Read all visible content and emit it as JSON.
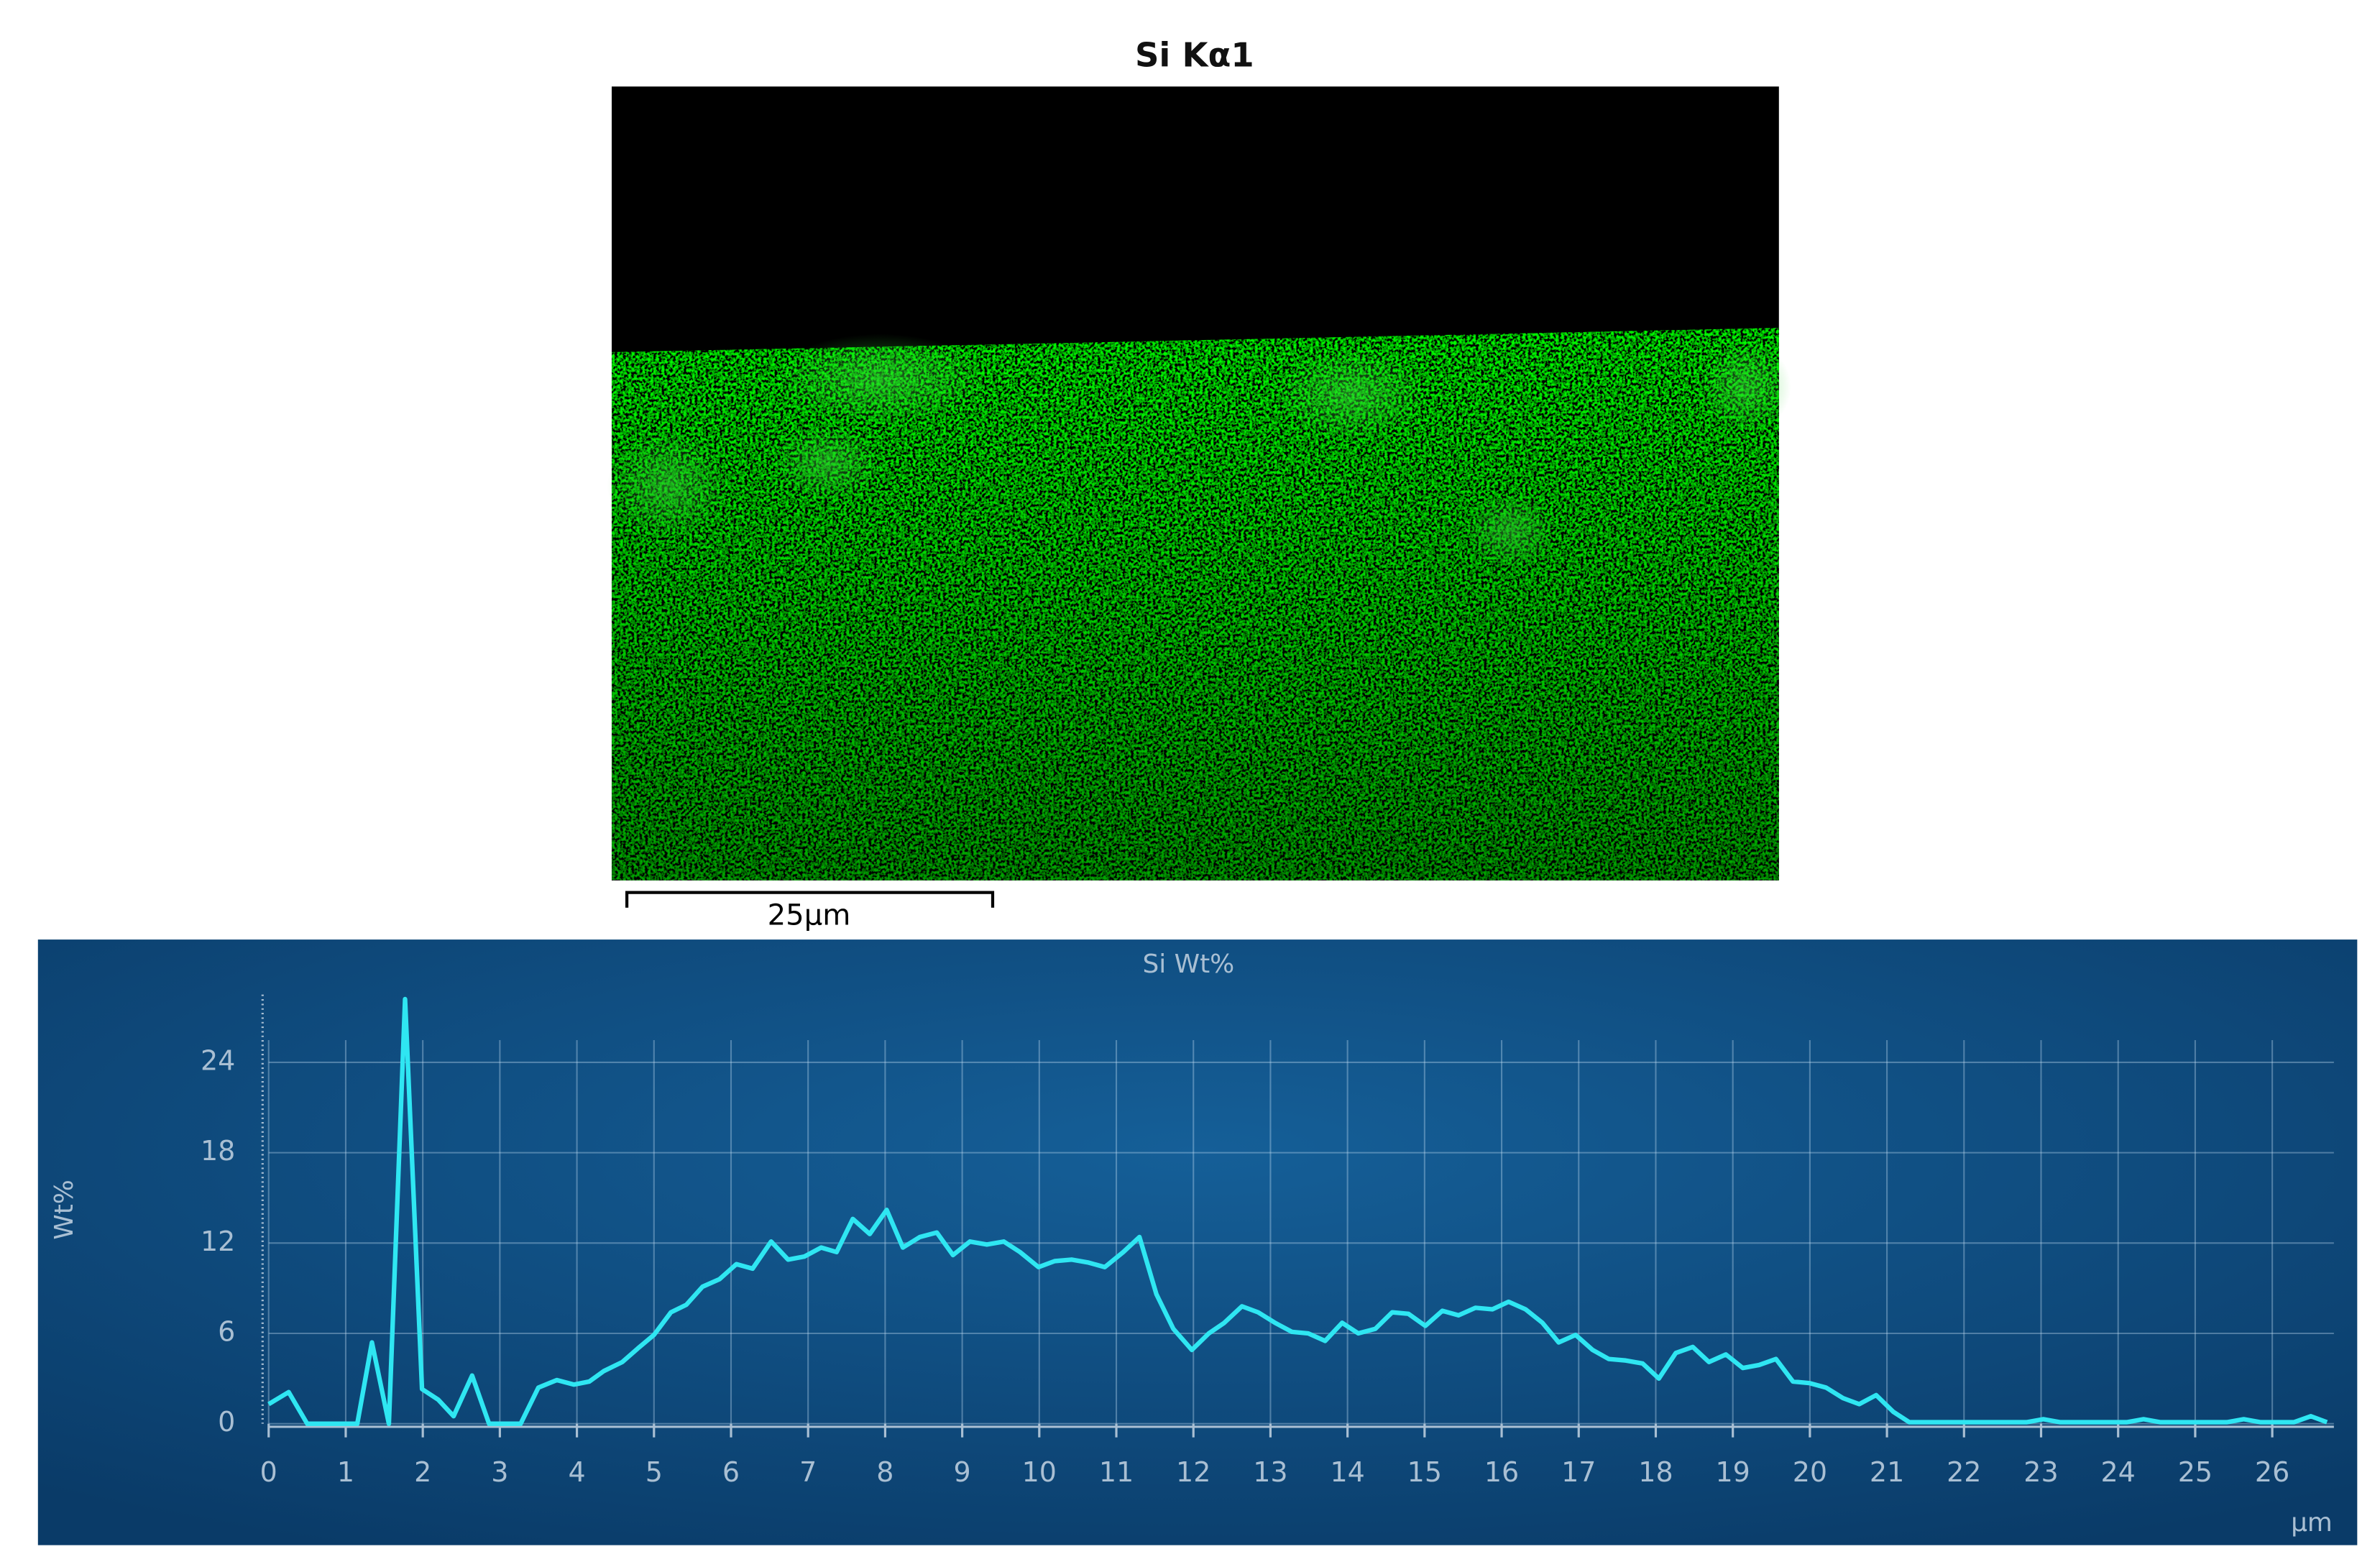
{
  "map": {
    "title": "Si Kα1",
    "scale_bar": "25µm"
  },
  "chart_data": {
    "type": "line",
    "title": "Si Wt%",
    "y_label": "Wt%",
    "x_label": "µm",
    "color": "#2fe6f2",
    "grid": true,
    "xlim": [
      0,
      26.8
    ],
    "ylim": [
      0,
      28.5
    ],
    "xticks": [
      0,
      1,
      2,
      3,
      4,
      5,
      6,
      7,
      8,
      9,
      10,
      11,
      12,
      13,
      14,
      15,
      16,
      17,
      18,
      19,
      20,
      21,
      22,
      23,
      24,
      25,
      26
    ],
    "yticks": [
      0,
      6,
      12,
      18,
      24
    ],
    "x": [
      0,
      0.26,
      0.5,
      1.15,
      1.34,
      1.56,
      1.77,
      1.99,
      2.2,
      2.4,
      2.64,
      2.86,
      3.27,
      3.5,
      3.74,
      3.96,
      4.16,
      4.35,
      4.59,
      4.79,
      5,
      5.22,
      5.42,
      5.63,
      5.85,
      6.07,
      6.28,
      6.52,
      6.74,
      6.95,
      7.17,
      7.37,
      7.58,
      7.8,
      8.02,
      8.23,
      8.45,
      8.67,
      8.88,
      9.1,
      9.32,
      9.54,
      9.75,
      9.99,
      10.2,
      10.42,
      10.64,
      10.85,
      11.09,
      11.3,
      11.52,
      11.74,
      11.98,
      12.2,
      12.4,
      12.63,
      12.84,
      13.06,
      13.28,
      13.49,
      13.71,
      13.93,
      14.14,
      14.36,
      14.58,
      14.79,
      15.01,
      15.23,
      15.44,
      15.66,
      15.88,
      16.09,
      16.31,
      16.53,
      16.74,
      16.96,
      17.18,
      17.39,
      17.61,
      17.83,
      18.04,
      18.26,
      18.48,
      18.69,
      18.91,
      19.13,
      19.34,
      19.56,
      19.78,
      19.99,
      20.21,
      20.43,
      20.64,
      20.86,
      21.08,
      21.29,
      21.51,
      21.73,
      21.95,
      22.16,
      22.38,
      22.6,
      22.81,
      23.03,
      23.25,
      23.46,
      23.68,
      23.9,
      24.11,
      24.33,
      24.55,
      24.76,
      24.98,
      25.2,
      25.41,
      25.63,
      25.85,
      26.06,
      26.28,
      26.5,
      26.71
    ],
    "values": [
      1.3,
      2.1,
      0,
      0,
      5.4,
      0,
      28.2,
      2.3,
      1.6,
      0.5,
      3.2,
      0,
      0,
      2.4,
      2.9,
      2.6,
      2.8,
      3.5,
      4.1,
      5,
      5.9,
      7.4,
      7.9,
      9.1,
      9.6,
      10.6,
      10.3,
      12.1,
      10.9,
      11.1,
      11.7,
      11.4,
      13.6,
      12.6,
      14.2,
      11.7,
      12.4,
      12.7,
      11.2,
      12.1,
      11.9,
      12.1,
      11.4,
      10.4,
      10.8,
      10.9,
      10.7,
      10.4,
      11.4,
      12.4,
      8.6,
      6.3,
      4.9,
      6,
      6.7,
      7.8,
      7.4,
      6.7,
      6.1,
      6,
      5.5,
      6.7,
      6,
      6.3,
      7.4,
      7.3,
      6.5,
      7.5,
      7.2,
      7.7,
      7.6,
      8.1,
      7.6,
      6.7,
      5.4,
      5.9,
      4.9,
      4.3,
      4.2,
      4,
      3,
      4.7,
      5.1,
      4.1,
      4.6,
      3.7,
      3.9,
      4.3,
      2.8,
      2.7,
      2.4,
      1.7,
      1.3,
      1.9,
      0.8,
      0.1,
      0.1,
      0.1,
      0.1,
      0.1,
      0.1,
      0.1,
      0.1,
      0.3,
      0.1,
      0.1,
      0.1,
      0.1,
      0.1,
      0.3,
      0.1,
      0.1,
      0.1,
      0.1,
      0.1,
      0.3,
      0.1,
      0.1,
      0.1,
      0.5,
      0.1
    ]
  }
}
